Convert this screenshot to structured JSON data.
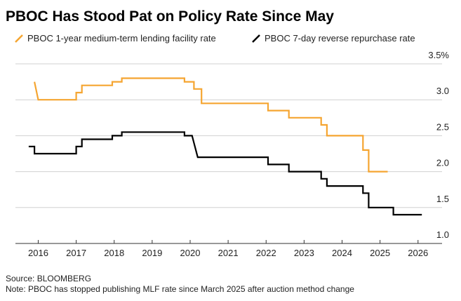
{
  "chart_data": {
    "type": "line",
    "title": "PBOC Has Stood Pat on Policy Rate Since May",
    "source": "Source: BLOOMBERG",
    "note": "Note: PBOC has stopped publishing MLF rate since March 2025 after auction method change",
    "series": [
      {
        "name": "PBOC 1-year medium-term lending facility rate",
        "color": "#f5a531",
        "x": [
          2015.9,
          2016.0,
          2017.0,
          2017.0,
          2017.15,
          2017.15,
          2017.95,
          2017.95,
          2018.2,
          2018.2,
          2019.85,
          2019.85,
          2020.1,
          2020.1,
          2020.3,
          2020.3,
          2022.05,
          2022.05,
          2022.6,
          2022.6,
          2023.45,
          2023.45,
          2023.6,
          2023.6,
          2024.55,
          2024.55,
          2024.7,
          2024.7,
          2025.2
        ],
        "values": [
          3.25,
          3.0,
          3.0,
          3.1,
          3.1,
          3.2,
          3.2,
          3.25,
          3.25,
          3.3,
          3.3,
          3.25,
          3.25,
          3.15,
          3.15,
          2.95,
          2.95,
          2.85,
          2.85,
          2.75,
          2.75,
          2.65,
          2.65,
          2.5,
          2.5,
          2.3,
          2.3,
          2.0,
          2.0
        ]
      },
      {
        "name": "PBOC 7-day reverse repurchase rate",
        "color": "#000000",
        "x": [
          2015.75,
          2015.9,
          2015.9,
          2017.0,
          2017.0,
          2017.15,
          2017.15,
          2017.95,
          2017.95,
          2018.2,
          2018.2,
          2019.85,
          2019.85,
          2020.05,
          2020.1,
          2020.2,
          2022.05,
          2022.05,
          2022.6,
          2022.6,
          2023.45,
          2023.45,
          2023.6,
          2023.6,
          2024.55,
          2024.55,
          2024.7,
          2024.7,
          2025.35,
          2025.35,
          2026.1
        ],
        "values": [
          2.35,
          2.35,
          2.25,
          2.25,
          2.35,
          2.35,
          2.45,
          2.45,
          2.5,
          2.5,
          2.55,
          2.55,
          2.5,
          2.5,
          2.4,
          2.2,
          2.2,
          2.1,
          2.1,
          2.0,
          2.0,
          1.9,
          1.9,
          1.8,
          1.8,
          1.7,
          1.7,
          1.5,
          1.5,
          1.4,
          1.4
        ]
      }
    ],
    "xlim": [
      2015.4,
      2026.3
    ],
    "xticks": [
      2016,
      2017,
      2018,
      2019,
      2020,
      2021,
      2022,
      2023,
      2024,
      2025,
      2026
    ],
    "ylim": [
      1.0,
      3.5
    ],
    "yticks": [
      {
        "value": 1.0,
        "label": "1.0"
      },
      1.5,
      {
        "value": 2.0,
        "label": "2.0"
      },
      2.5,
      {
        "value": 3.0,
        "label": "3.0"
      },
      {
        "value": 3.5,
        "label": "3.5%"
      }
    ],
    "grid": true
  }
}
